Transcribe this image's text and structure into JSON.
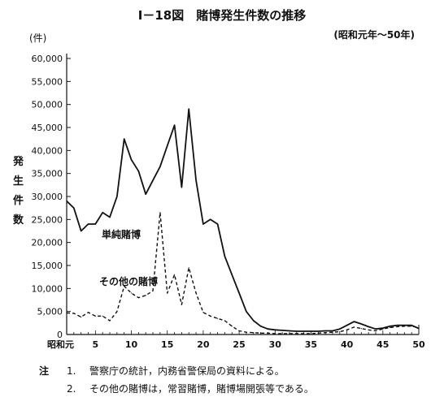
{
  "chart_data": {
    "type": "line",
    "title": "Ⅰ－18図　賭博発生件数の推移",
    "subtitle": "(昭和元年～50年)",
    "unit_label": "(件)",
    "ylabel": "発生件数",
    "xlabel": "",
    "ylim": [
      0,
      60000
    ],
    "xlim": [
      1,
      50
    ],
    "yticks": [
      0,
      5000,
      10000,
      15000,
      20000,
      25000,
      30000,
      35000,
      40000,
      45000,
      50000,
      55000,
      60000
    ],
    "ytick_labels": [
      "0",
      "5,000",
      "10,000",
      "15,000",
      "20,000",
      "25,000",
      "30,000",
      "35,000",
      "40,000",
      "45,000",
      "50,000",
      "55,000",
      "60,000"
    ],
    "xticks": [
      1,
      5,
      10,
      15,
      20,
      25,
      30,
      35,
      40,
      45,
      50
    ],
    "xtick_labels": [
      "昭和元",
      "5",
      "10",
      "15",
      "20",
      "25",
      "30",
      "35",
      "40",
      "45",
      "50"
    ],
    "grid": false,
    "series": [
      {
        "name": "単純賭博",
        "style": "solid",
        "x": [
          1,
          2,
          3,
          4,
          5,
          6,
          7,
          8,
          9,
          10,
          11,
          12,
          13,
          14,
          15,
          16,
          17,
          18,
          19,
          20,
          21,
          22,
          23,
          24,
          25,
          26,
          27,
          28,
          29,
          30,
          31,
          32,
          33,
          34,
          35,
          36,
          37,
          38,
          39,
          40,
          41,
          42,
          43,
          44,
          45,
          46,
          47,
          48,
          49,
          50
        ],
        "values": [
          29000,
          27500,
          22500,
          24000,
          24000,
          26500,
          25500,
          30000,
          42500,
          38000,
          35500,
          30500,
          33500,
          36500,
          41000,
          45500,
          32000,
          49000,
          33500,
          24000,
          25000,
          24000,
          17000,
          13000,
          9000,
          5000,
          3000,
          1800,
          1200,
          1000,
          900,
          800,
          700,
          700,
          700,
          700,
          800,
          800,
          1200,
          2000,
          2800,
          2300,
          1700,
          1200,
          1400,
          1800,
          2000,
          2000,
          2000,
          1300
        ]
      },
      {
        "name": "その他の賭博",
        "style": "dashed",
        "x": [
          1,
          2,
          3,
          4,
          5,
          6,
          7,
          8,
          9,
          10,
          11,
          12,
          13,
          14,
          15,
          16,
          17,
          18,
          19,
          20,
          21,
          22,
          23,
          24,
          25,
          26,
          27,
          28,
          29,
          30,
          31,
          32,
          33,
          34,
          35,
          36,
          37,
          38,
          39,
          40,
          41,
          42,
          43,
          44,
          45,
          46,
          47,
          48,
          49,
          50
        ],
        "values": [
          4700,
          4600,
          3800,
          4800,
          4000,
          4000,
          3000,
          5000,
          10500,
          9000,
          8000,
          8500,
          9500,
          26500,
          9000,
          13000,
          6500,
          14500,
          9000,
          4800,
          4000,
          3500,
          3000,
          1800,
          800,
          500,
          400,
          300,
          300,
          200,
          200,
          200,
          200,
          200,
          200,
          300,
          400,
          500,
          600,
          1000,
          1600,
          1300,
          1000,
          800,
          1200,
          1500,
          1700,
          1800,
          1800,
          1500
        ]
      }
    ],
    "annotations": [
      "単純賭博",
      "その他の賭博"
    ]
  },
  "notes": {
    "lead": "注",
    "items": [
      {
        "num": "1.",
        "text": "警察庁の統計，内務省警保局の資料による。"
      },
      {
        "num": "2.",
        "text": "その他の賭博は，常習賭博，賭博場開張等である。"
      }
    ]
  }
}
